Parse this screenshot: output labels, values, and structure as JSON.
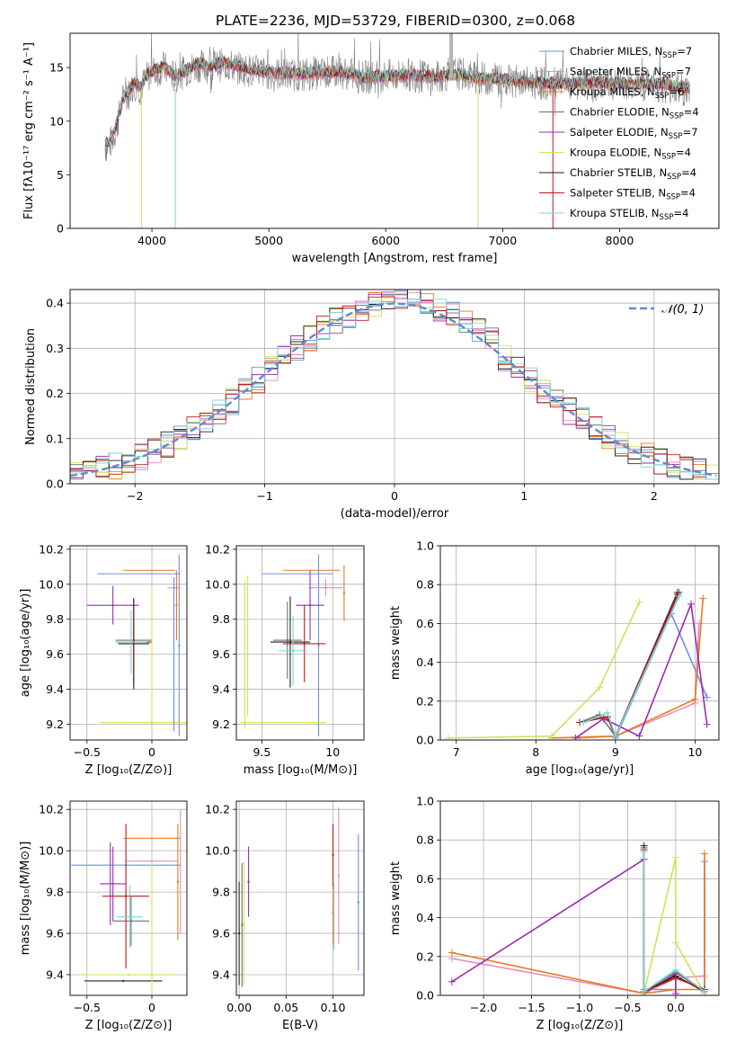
{
  "figure": {
    "title": "PLATE=2236, MJD=53729, FIBERID=0300, z=0.068"
  },
  "model_colors": [
    "#6f90d8",
    "#e98bbd",
    "#e8791e",
    "#6f6f6f",
    "#9b2bb0",
    "#c9e55a",
    "#222222",
    "#c0181d",
    "#7ad6d6"
  ],
  "chart_data": [
    {
      "id": "spectrum",
      "type": "line",
      "xlabel": "wavelength [Angstrom, rest frame]",
      "ylabel": "Flux [fλ10⁻¹⁷ erg cm⁻² s⁻¹ A⁻¹]",
      "xlim": [
        3300,
        8850
      ],
      "ylim": [
        0,
        18.2
      ],
      "xticks": [
        4000,
        5000,
        6000,
        7000,
        8000
      ],
      "yticks": [
        0,
        5,
        10,
        15
      ],
      "grid": false,
      "legend_position": "top-right",
      "data_color": "#808080",
      "series_color": "#7ad6d6",
      "data_x": [
        3600,
        3650,
        3700,
        3750,
        3800,
        3850,
        3900,
        3950,
        4000,
        4100,
        4200,
        4300,
        4400,
        4500,
        4600,
        4800,
        5000,
        5200,
        5400,
        5600,
        5800,
        6000,
        6200,
        6400,
        6600,
        6800,
        7000,
        7200,
        7400,
        7600,
        7800,
        8000,
        8200,
        8400,
        8600
      ],
      "data_y": [
        7.5,
        8.0,
        9.5,
        12.0,
        12.5,
        13.5,
        13.0,
        14.0,
        14.5,
        15.0,
        14.0,
        14.8,
        15.2,
        15.0,
        15.3,
        14.8,
        14.5,
        14.3,
        14.4,
        14.6,
        14.1,
        14.2,
        14.3,
        14.0,
        14.5,
        14.0,
        13.8,
        13.6,
        13.5,
        13.4,
        13.3,
        13.6,
        13.4,
        13.2,
        12.8
      ],
      "model_y": [
        7.8,
        8.2,
        9.8,
        12.2,
        12.8,
        13.6,
        13.2,
        14.2,
        14.6,
        15.1,
        14.2,
        14.8,
        15.4,
        15.1,
        15.5,
        14.9,
        14.6,
        14.4,
        14.5,
        14.6,
        14.1,
        14.2,
        14.3,
        14.1,
        14.4,
        14.0,
        13.9,
        13.7,
        13.5,
        13.5,
        13.6,
        13.5,
        13.5,
        13.4,
        13.0
      ],
      "series": [
        {
          "name": "Chabrier MILES",
          "nssp": "7"
        },
        {
          "name": "Salpeter MILES",
          "nssp": "7"
        },
        {
          "name": "Kroupa MILES",
          "nssp": "6"
        },
        {
          "name": "Chabrier ELODIE",
          "nssp": "4"
        },
        {
          "name": "Salpeter ELODIE",
          "nssp": "7"
        },
        {
          "name": "Kroupa ELODIE",
          "nssp": "4"
        },
        {
          "name": "Chabrier STELIB",
          "nssp": "4"
        },
        {
          "name": "Salpeter STELIB",
          "nssp": "4"
        },
        {
          "name": "Kroupa STELIB",
          "nssp": "4"
        }
      ],
      "nssp_prefix": "N",
      "nssp_subscript": "SSP",
      "vertical_features": [
        {
          "x": 3910,
          "color": "#c9e55a"
        },
        {
          "x": 4200,
          "color": "#7ad6d6"
        },
        {
          "x": 6790,
          "color": "#c9e55a"
        },
        {
          "x": 7430,
          "color": "#c0181d"
        }
      ]
    },
    {
      "id": "residuals",
      "type": "line",
      "xlabel": "(data-model)/error",
      "ylabel": "Normed distribution",
      "xlim": [
        -2.5,
        2.5
      ],
      "ylim": [
        0,
        0.43
      ],
      "xticks": [
        -2,
        -1,
        0,
        1,
        2
      ],
      "yticks": [
        0.0,
        0.1,
        0.2,
        0.3,
        0.4
      ],
      "grid": true,
      "legend_position": "top-right",
      "reference_label": "𝒩(0, 1)",
      "reference_mean": 0,
      "reference_sigma": 1,
      "reference_color": "#5b8bd5",
      "bin_width": 0.1
    },
    {
      "id": "age-vs-Z",
      "type": "scatter",
      "xlabel": "Z [log₁₀(Z/Z⊙)]",
      "ylabel": "age  [log₁₀(age/yr)]",
      "xlim": [
        -0.63,
        0.27
      ],
      "ylim": [
        9.11,
        10.22
      ],
      "xticks": [
        -0.5,
        0.0
      ],
      "yticks": [
        9.2,
        9.4,
        9.6,
        9.8,
        10.0,
        10.2
      ],
      "grid": true,
      "points": [
        {
          "x": 0.21,
          "y": 9.65,
          "xerr": 0.0,
          "yerr": 0.52
        },
        {
          "x": 0.17,
          "y": 9.98,
          "xerr": 0.05,
          "yerr": 0.0
        },
        {
          "x": 0.19,
          "y": 9.88,
          "xerr": 0.0,
          "yerr": 0.2
        },
        {
          "x": -0.14,
          "y": 9.68,
          "xerr": 0.14,
          "yerr": 0.24
        },
        {
          "x": -0.3,
          "y": 9.88,
          "xerr": 0.2,
          "yerr": 0.11
        },
        {
          "x": 0.0,
          "y": 9.21,
          "xerr": 0.4,
          "yerr": 0.0
        },
        {
          "x": -0.14,
          "y": 9.66,
          "xerr": 0.12,
          "yerr": 0.26
        },
        {
          "x": -0.14,
          "y": 9.67,
          "xerr": 0.14,
          "yerr": 0.2
        },
        {
          "x": -0.16,
          "y": 9.67,
          "xerr": 0.12,
          "yerr": 0.18
        }
      ],
      "extra_bars": [
        {
          "x": -0.1,
          "y": 10.06,
          "xerr": 0.32,
          "yerr": 0.0,
          "color": 0
        },
        {
          "x": -0.02,
          "y": 10.08,
          "xerr": 0.2,
          "yerr": 0.0,
          "color": 2
        },
        {
          "x": 0.0,
          "y": 9.6,
          "xerr": 0.0,
          "yerr": 0.38,
          "color": 5
        },
        {
          "x": 0.17,
          "y": 9.6,
          "xerr": 0.0,
          "yerr": 0.44,
          "color": 0
        }
      ]
    },
    {
      "id": "age-vs-mass",
      "type": "scatter",
      "xlabel": "mass [log₁₀(M/M⊙)]",
      "ylabel": "",
      "xlim": [
        9.32,
        10.22
      ],
      "ylim": [
        9.11,
        10.22
      ],
      "xticks": [
        9.5,
        10.0
      ],
      "yticks": [
        9.2,
        9.4,
        9.6,
        9.8,
        10.0,
        10.2
      ],
      "grid": true,
      "points": [
        {
          "x": 9.9,
          "y": 9.65,
          "xerr": 0.0,
          "yerr": 0.52
        },
        {
          "x": 9.95,
          "y": 9.98,
          "xerr": 0.12,
          "yerr": 0.05
        },
        {
          "x": 10.08,
          "y": 9.95,
          "xerr": 0.0,
          "yerr": 0.16
        },
        {
          "x": 9.68,
          "y": 9.68,
          "xerr": 0.1,
          "yerr": 0.22
        },
        {
          "x": 9.84,
          "y": 9.88,
          "xerr": 0.1,
          "yerr": 0.2
        },
        {
          "x": 9.38,
          "y": 9.6,
          "xerr": 0.0,
          "yerr": 0.42
        },
        {
          "x": 9.7,
          "y": 9.67,
          "xerr": 0.14,
          "yerr": 0.26
        },
        {
          "x": 9.8,
          "y": 9.66,
          "xerr": 0.15,
          "yerr": 0.22
        },
        {
          "x": 9.72,
          "y": 9.62,
          "xerr": 0.1,
          "yerr": 0.2
        }
      ],
      "extra_bars": [
        {
          "x": 9.75,
          "y": 10.06,
          "xerr": 0.25,
          "yerr": 0.0,
          "color": 0
        },
        {
          "x": 9.85,
          "y": 10.08,
          "xerr": 0.2,
          "yerr": 0.0,
          "color": 2
        },
        {
          "x": 9.65,
          "y": 9.21,
          "xerr": 0.3,
          "yerr": 0.0,
          "color": 5
        },
        {
          "x": 9.4,
          "y": 9.65,
          "xerr": 0.0,
          "yerr": 0.4,
          "color": 5
        }
      ]
    },
    {
      "id": "massweight-vs-age",
      "type": "line",
      "xlabel": "age  [log₁₀(age/yr)]",
      "ylabel": "mass weight",
      "xlim": [
        6.8,
        10.3
      ],
      "ylim": [
        0,
        1.0
      ],
      "xticks": [
        7,
        8,
        9,
        10
      ],
      "yticks": [
        0.0,
        0.2,
        0.4,
        0.6,
        0.8,
        1.0
      ],
      "grid": true,
      "series": [
        {
          "x": [
            8.55,
            8.9,
            9.0,
            9.7,
            10.15
          ],
          "y": [
            0.09,
            0.12,
            0.01,
            0.65,
            0.22
          ]
        },
        {
          "x": [
            8.55,
            9.0,
            10.0,
            10.05
          ],
          "y": [
            0.01,
            0.02,
            0.19,
            0.6
          ]
        },
        {
          "x": [
            8.2,
            9.0,
            10.0,
            10.1
          ],
          "y": [
            0.01,
            0.02,
            0.21,
            0.73
          ]
        },
        {
          "x": [
            8.55,
            8.8,
            9.0,
            9.8
          ],
          "y": [
            0.09,
            0.13,
            0.02,
            0.76
          ]
        },
        {
          "x": [
            8.5,
            8.85,
            9.3,
            9.95,
            10.15
          ],
          "y": [
            0.01,
            0.11,
            0.02,
            0.7,
            0.08
          ]
        },
        {
          "x": [
            6.9,
            8.2,
            8.8,
            9.3
          ],
          "y": [
            0.01,
            0.02,
            0.27,
            0.71
          ]
        },
        {
          "x": [
            8.55,
            8.9,
            9.0,
            9.78
          ],
          "y": [
            0.09,
            0.12,
            0.02,
            0.76
          ]
        },
        {
          "x": [
            8.55,
            8.9,
            9.0,
            9.78
          ],
          "y": [
            0.09,
            0.12,
            0.02,
            0.75
          ]
        },
        {
          "x": [
            8.6,
            8.9,
            9.0,
            9.8
          ],
          "y": [
            0.09,
            0.14,
            0.02,
            0.74
          ]
        }
      ]
    },
    {
      "id": "mass-vs-Z",
      "type": "scatter",
      "xlabel": "Z [log₁₀(Z/Z⊙)]",
      "ylabel": "mass [log₁₀(M/M⊙)]",
      "xlim": [
        -0.63,
        0.27
      ],
      "ylim": [
        9.3,
        10.24
      ],
      "xticks": [
        -0.5,
        0.0
      ],
      "yticks": [
        9.4,
        9.6,
        9.8,
        10.0,
        10.2
      ],
      "grid": true,
      "points": [
        {
          "x": -0.2,
          "y": 9.93,
          "xerr": 0.42,
          "yerr": 0.0
        },
        {
          "x": 0.0,
          "y": 9.95,
          "xerr": 0.2,
          "yerr": 0.0
        },
        {
          "x": 0.2,
          "y": 9.85,
          "xerr": 0.0,
          "yerr": 0.28
        },
        {
          "x": -0.16,
          "y": 9.66,
          "xerr": 0.14,
          "yerr": 0.12
        },
        {
          "x": -0.3,
          "y": 9.84,
          "xerr": 0.1,
          "yerr": 0.18
        },
        {
          "x": -0.18,
          "y": 9.4,
          "xerr": 0.35,
          "yerr": 0.0
        },
        {
          "x": -0.22,
          "y": 9.37,
          "xerr": 0.3,
          "yerr": 0.0
        },
        {
          "x": -0.2,
          "y": 9.78,
          "xerr": 0.18,
          "yerr": 0.35
        },
        {
          "x": -0.17,
          "y": 9.68,
          "xerr": 0.1,
          "yerr": 0.15
        }
      ],
      "extra_bars": [
        {
          "x": 0.0,
          "y": 10.06,
          "xerr": 0.22,
          "yerr": 0.0,
          "color": 2
        },
        {
          "x": -0.32,
          "y": 9.84,
          "xerr": 0.0,
          "yerr": 0.2,
          "color": 4
        },
        {
          "x": 0.0,
          "y": 9.6,
          "xerr": 0.0,
          "yerr": 0.35,
          "color": 5
        },
        {
          "x": 0.22,
          "y": 9.9,
          "xerr": 0.0,
          "yerr": 0.3,
          "color": 1
        }
      ]
    },
    {
      "id": "mass-vs-EBV",
      "type": "scatter",
      "xlabel": "E(B-V)",
      "ylabel": "",
      "xlim": [
        -0.003,
        0.133
      ],
      "ylim": [
        9.3,
        10.24
      ],
      "xticks": [
        0.0,
        0.05,
        0.1
      ],
      "xtick_labels": [
        "0.00",
        "0.05",
        "0.10"
      ],
      "yticks": [
        9.4,
        9.6,
        9.8,
        10.0,
        10.2
      ],
      "grid": true,
      "points": [
        {
          "x": 0.127,
          "y": 9.75,
          "xerr": 0.0,
          "yerr": 0.33
        },
        {
          "x": 0.106,
          "y": 9.88,
          "xerr": 0.0,
          "yerr": 0.33
        },
        {
          "x": 0.1,
          "y": 9.7,
          "xerr": 0.0,
          "yerr": 0.15
        },
        {
          "x": 0.003,
          "y": 9.64,
          "xerr": 0.0,
          "yerr": 0.3
        },
        {
          "x": 0.01,
          "y": 9.85,
          "xerr": 0.0,
          "yerr": 0.17
        },
        {
          "x": 0.005,
          "y": 9.65,
          "xerr": 0.0,
          "yerr": 0.3
        },
        {
          "x": 0.0,
          "y": 9.6,
          "xerr": 0.0,
          "yerr": 0.25
        },
        {
          "x": 0.1,
          "y": 9.98,
          "xerr": 0.0,
          "yerr": 0.15
        },
        {
          "x": 0.101,
          "y": 9.68,
          "xerr": 0.0,
          "yerr": 0.16
        }
      ],
      "extra_bars": []
    },
    {
      "id": "massweight-vs-Z",
      "type": "line",
      "xlabel": "Z [log₁₀(Z/Z⊙)]",
      "ylabel": "mass weight",
      "xlim": [
        -2.45,
        0.45
      ],
      "ylim": [
        0,
        1.0
      ],
      "xticks": [
        -2.0,
        -1.5,
        -1.0,
        -0.5,
        0.0
      ],
      "xtick_labels": [
        "−2.0",
        "−1.5",
        "−1.0",
        "−0.5",
        "0.0"
      ],
      "yticks": [
        0.0,
        0.2,
        0.4,
        0.6,
        0.8,
        1.0
      ],
      "grid": true,
      "series": [
        {
          "x": [
            -0.33,
            -0.33,
            0.0,
            0.0,
            0.3,
            0.3
          ],
          "y": [
            0.75,
            0.03,
            0.03,
            0.12,
            0.02,
            0.69
          ]
        },
        {
          "x": [
            -2.33,
            -0.33,
            0.0,
            0.3,
            0.3
          ],
          "y": [
            0.19,
            0.01,
            0.09,
            0.1,
            0.6
          ]
        },
        {
          "x": [
            -2.33,
            -0.33,
            0.0,
            0.3,
            0.3
          ],
          "y": [
            0.22,
            0.01,
            0.03,
            0.03,
            0.73
          ]
        },
        {
          "x": [
            -0.33,
            -0.33,
            0.0,
            0.3
          ],
          "y": [
            0.76,
            0.02,
            0.12,
            0.02
          ]
        },
        {
          "x": [
            -2.33,
            -0.33,
            -0.33,
            0.0,
            0.0
          ],
          "y": [
            0.07,
            0.7,
            0.01,
            0.11,
            0.01
          ]
        },
        {
          "x": [
            -0.33,
            0.0,
            0.0,
            0.3
          ],
          "y": [
            0.01,
            0.71,
            0.27,
            0.01
          ]
        },
        {
          "x": [
            -0.33,
            -0.33,
            0.0,
            0.3
          ],
          "y": [
            0.77,
            0.02,
            0.1,
            0.02
          ]
        },
        {
          "x": [
            -0.33,
            -0.33,
            0.0,
            0.3
          ],
          "y": [
            0.75,
            0.02,
            0.09,
            0.03
          ]
        },
        {
          "x": [
            -0.33,
            -0.33,
            0.0,
            0.3
          ],
          "y": [
            0.74,
            0.02,
            0.13,
            0.02
          ]
        }
      ]
    }
  ]
}
